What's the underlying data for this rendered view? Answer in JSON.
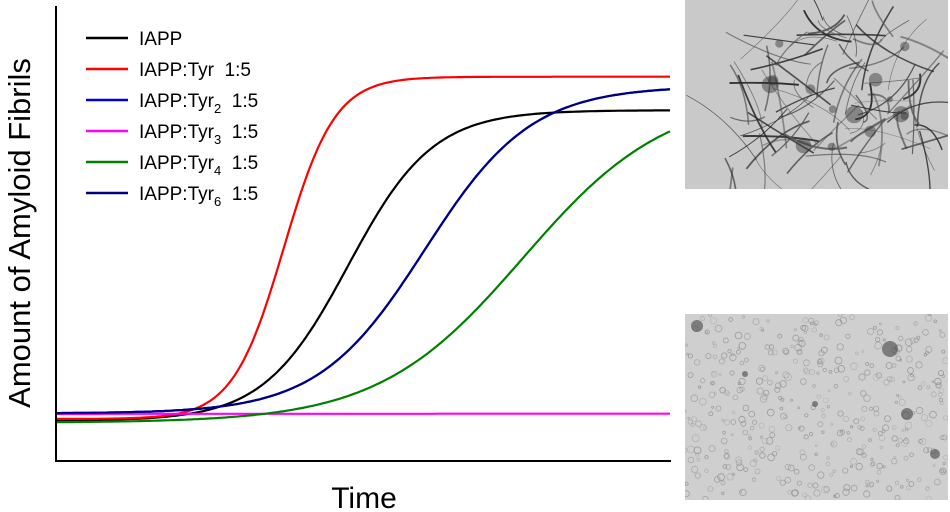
{
  "chart_data": {
    "type": "line",
    "title": "",
    "xlabel": "Time",
    "ylabel": "Amount of Amyloid Fibrils",
    "xlim": [
      0,
      100
    ],
    "ylim": [
      0,
      100
    ],
    "grid": false,
    "ticks_shown": false,
    "legend_position": "top-left",
    "series": [
      {
        "key": "iapp",
        "name": "IAPP",
        "legend_html": "IAPP:",
        "label": "IAPP",
        "sub": "",
        "ratio": "",
        "color": "#000000",
        "model": {
          "low": 3.0,
          "high": 86.5,
          "mid": 47.5,
          "k": 0.145
        }
      },
      {
        "key": "tyr1",
        "name": "IAPP:Tyr 1:5",
        "label": "IAPP:Tyr",
        "sub": "",
        "ratio": "1:5",
        "color": "#ff0000",
        "model": {
          "low": 3.5,
          "high": 95.5,
          "mid": 37.0,
          "k": 0.24
        }
      },
      {
        "key": "tyr2",
        "name": "IAPP:Tyr2 1:5",
        "label": "IAPP:Tyr",
        "sub": "2",
        "ratio": "1:5",
        "color": "#0000dd",
        "model": {
          "low": 5.0,
          "high": 93.0,
          "mid": 60.0,
          "k": 0.115
        }
      },
      {
        "key": "tyr3",
        "name": "IAPP:Tyr3 1:5",
        "label": "IAPP:Tyr",
        "sub": "3",
        "ratio": "1:5",
        "color": "#ff00ff",
        "model": {
          "low": 4.8,
          "high": 5.0,
          "mid": 50.0,
          "k": 0.01
        }
      },
      {
        "key": "tyr4",
        "name": "IAPP:Tyr4 1:5",
        "label": "IAPP:Tyr",
        "sub": "4",
        "ratio": "1:5",
        "color": "#008000",
        "model": {
          "low": 2.5,
          "high": 91.0,
          "mid": 76.0,
          "k": 0.085
        }
      },
      {
        "key": "tyr6",
        "name": "IAPP:Tyr6 1:5",
        "label": "IAPP:Tyr",
        "sub": "6",
        "ratio": "1:5",
        "color": "#000080",
        "model": {
          "low": 5.0,
          "high": 93.0,
          "mid": 60.0,
          "k": 0.115
        }
      }
    ]
  },
  "images": [
    {
      "key": "tem-top",
      "description_icon": "fibril-network-micrograph"
    },
    {
      "key": "tem-bottom",
      "description_icon": "amorphous-aggregate-micrograph"
    }
  ]
}
